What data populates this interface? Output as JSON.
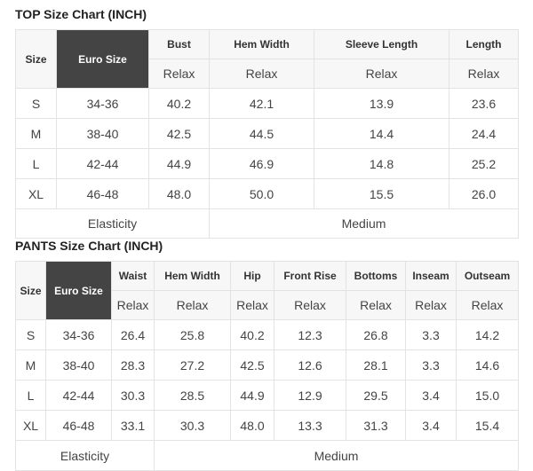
{
  "top": {
    "title": "TOP Size Chart (INCH)",
    "size_header": "Size",
    "euro_header": "Euro Size",
    "columns": [
      "Bust",
      "Hem Width",
      "Sleeve Length",
      "Length"
    ],
    "sub_label": "Relax",
    "rows": [
      [
        "S",
        "34-36",
        "40.2",
        "42.1",
        "13.9",
        "23.6"
      ],
      [
        "M",
        "38-40",
        "42.5",
        "44.5",
        "14.4",
        "24.4"
      ],
      [
        "L",
        "42-44",
        "44.9",
        "46.9",
        "14.8",
        "25.2"
      ],
      [
        "XL",
        "46-48",
        "48.0",
        "50.0",
        "15.5",
        "26.0"
      ]
    ],
    "elasticity_label": "Elasticity",
    "elasticity_value": "Medium"
  },
  "pants": {
    "title": "PANTS Size Chart (INCH)",
    "size_header": "Size",
    "euro_header": "Euro Size",
    "columns": [
      "Waist",
      "Hem Width",
      "Hip",
      "Front Rise",
      "Bottoms",
      "Inseam",
      "Outseam"
    ],
    "sub_label": "Relax",
    "rows": [
      [
        "S",
        "34-36",
        "26.4",
        "25.8",
        "40.2",
        "12.3",
        "26.8",
        "3.3",
        "14.2"
      ],
      [
        "M",
        "38-40",
        "28.3",
        "27.2",
        "42.5",
        "12.6",
        "28.1",
        "3.3",
        "14.6"
      ],
      [
        "L",
        "42-44",
        "30.3",
        "28.5",
        "44.9",
        "12.9",
        "29.5",
        "3.4",
        "15.0"
      ],
      [
        "XL",
        "46-48",
        "33.1",
        "30.3",
        "48.0",
        "13.3",
        "31.3",
        "3.4",
        "15.4"
      ]
    ],
    "elasticity_label": "Elasticity",
    "elasticity_value": "Medium"
  },
  "colors": {
    "euro_header_bg": "#444444",
    "header_bg": "#f7f7f7",
    "border": "#e3e3e3"
  }
}
